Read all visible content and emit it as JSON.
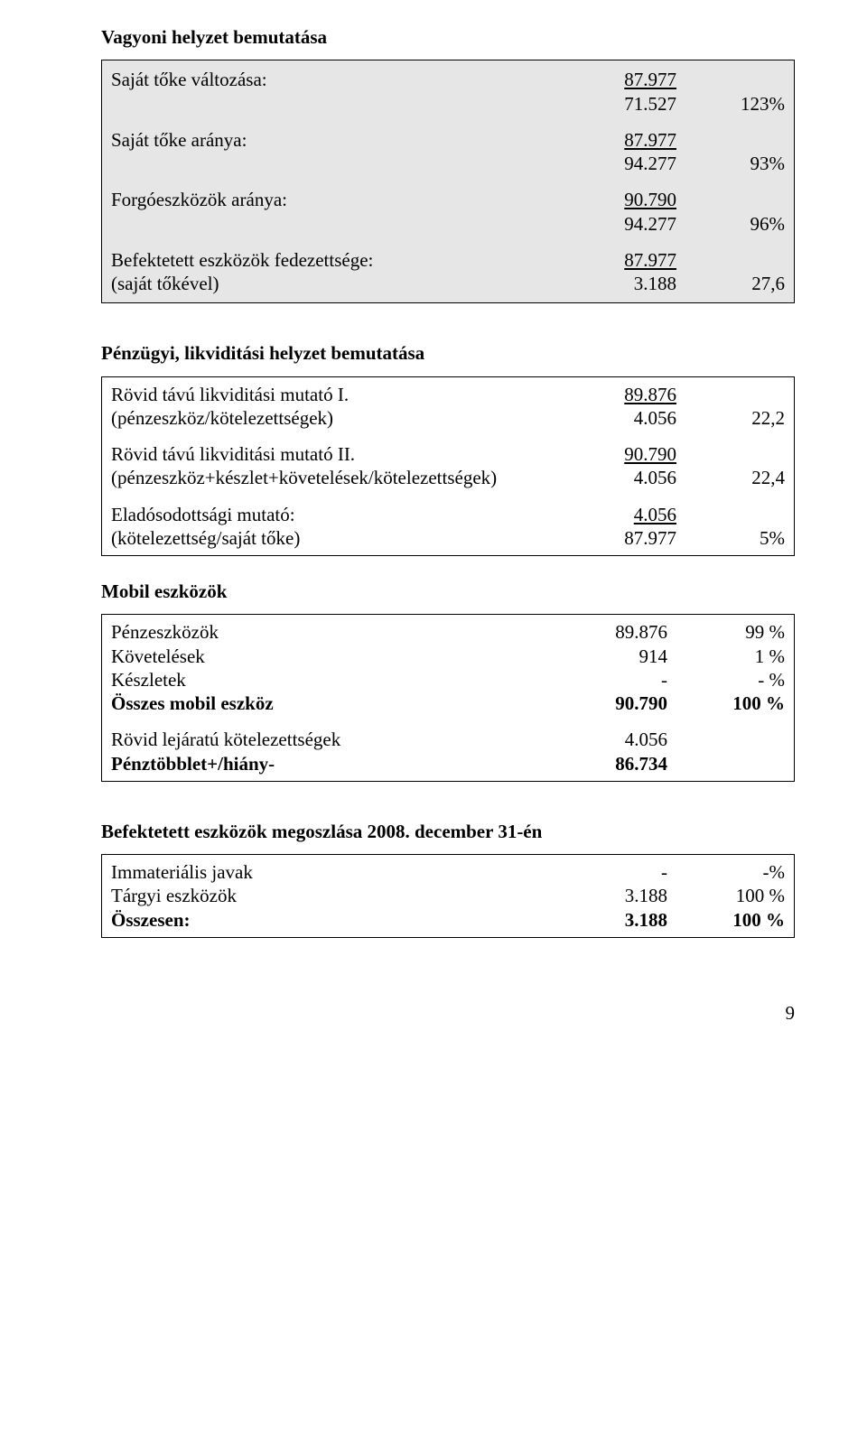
{
  "section1": {
    "title": "Vagyoni helyzet bemutatása",
    "items": [
      {
        "label": "Saját tőke változása:",
        "a": "87.977",
        "b": "",
        "underlineA": true
      },
      {
        "label": "",
        "a": "71.527",
        "b": "123%"
      },
      {
        "label": "",
        "a": "",
        "b": "",
        "spacer": true
      },
      {
        "label": "Saját tőke aránya:",
        "a": "87.977",
        "b": "",
        "underlineA": true
      },
      {
        "label": "",
        "a": "94.277",
        "b": "93%"
      },
      {
        "label": "",
        "a": "",
        "b": "",
        "spacer": true
      },
      {
        "label": "Forgóeszközök aránya:",
        "a": "90.790",
        "b": "",
        "underlineA": true
      },
      {
        "label": "",
        "a": "94.277",
        "b": "96%"
      },
      {
        "label": "",
        "a": "",
        "b": "",
        "spacer": true
      },
      {
        "label": "Befektetett eszközök fedezettsége:",
        "a": "87.977",
        "b": "",
        "underlineA": true
      },
      {
        "label": "(saját tőkével)",
        "a": "3.188",
        "b": "27,6"
      }
    ]
  },
  "section2": {
    "title": "Pénzügyi, likviditási helyzet bemutatása",
    "items": [
      {
        "label": "Rövid távú likviditási mutató I.",
        "a": "89.876",
        "b": "",
        "underlineA": true
      },
      {
        "label": "(pénzeszköz/kötelezettségek)",
        "a": "4.056",
        "b": "22,2"
      },
      {
        "label": "",
        "a": "",
        "b": "",
        "spacer": true
      },
      {
        "label": "Rövid távú likviditási mutató II.",
        "a": "90.790",
        "b": "",
        "underlineA": true
      },
      {
        "label": "(pénzeszköz+készlet+követelések/kötelezettségek)",
        "a": "4.056",
        "b": "22,4"
      },
      {
        "label": "",
        "a": "",
        "b": "",
        "spacer": true
      },
      {
        "label": "Eladósodottsági mutató:",
        "a": "4.056",
        "b": "",
        "underlineA": true
      },
      {
        "label": "(kötelezettség/saját tőke)",
        "a": "87.977",
        "b": "5%"
      }
    ]
  },
  "mobil": {
    "title": "Mobil eszközök",
    "rows": [
      {
        "label": "Pénzeszközök",
        "a": "89.876",
        "b": "99 %"
      },
      {
        "label": "Követelések",
        "a": "914",
        "b": "1 %"
      },
      {
        "label": "Készletek",
        "a": "-",
        "b": "- %"
      }
    ],
    "total": {
      "label": "Összes mobil eszköz",
      "a": "90.790",
      "b": "100  %"
    },
    "short": {
      "label": "Rövid lejáratú kötelezettségek",
      "a": "4.056"
    },
    "surplus": {
      "label": "Pénztöbblet+/hiány-",
      "a": "86.734"
    }
  },
  "befektetett": {
    "title": "Befektetett eszközök megoszlása 2008. december  31-én",
    "rows": [
      {
        "label": "Immateriális javak",
        "a": "-",
        "b": "-%"
      },
      {
        "label": "Tárgyi eszközök",
        "a": "3.188",
        "b": "100 %"
      }
    ],
    "total": {
      "label": "Összesen:",
      "a": "3.188",
      "b": "100 %"
    }
  },
  "page_number": "9"
}
